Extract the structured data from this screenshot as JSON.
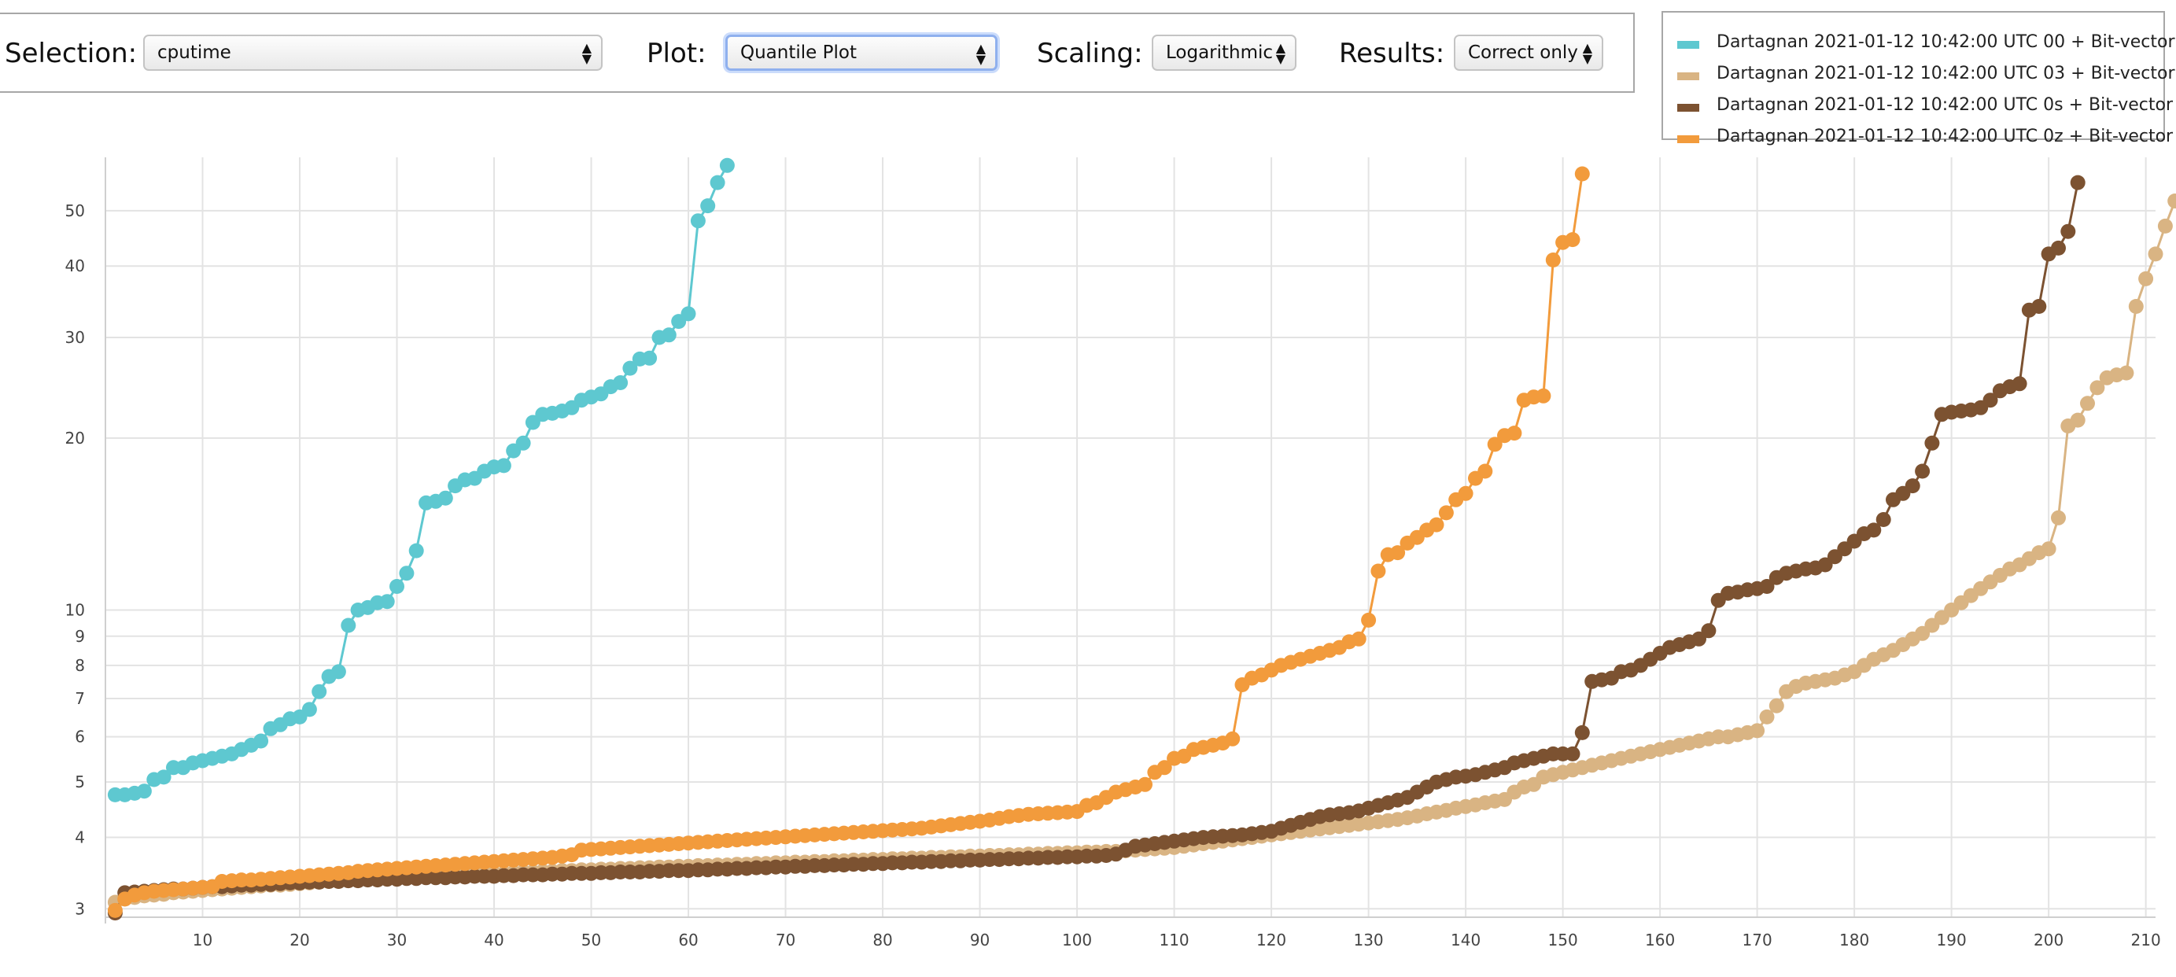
{
  "controls": {
    "selection_label": "Selection:",
    "selection_value": "cputime",
    "plot_label": "Plot:",
    "plot_value": "Quantile Plot",
    "scaling_label": "Scaling:",
    "scaling_value": "Logarithmic",
    "results_label": "Results:",
    "results_value": "Correct only"
  },
  "legend": [
    {
      "label": "Dartagnan 2021-01-12 10:42:00 UTC 00 + Bit-vector",
      "color": "#5ec8d0"
    },
    {
      "label": "Dartagnan 2021-01-12 10:42:00 UTC 03 + Bit-vector",
      "color": "#d9b483"
    },
    {
      "label": "Dartagnan 2021-01-12 10:42:00 UTC 0s + Bit-vector",
      "color": "#7c5231"
    },
    {
      "label": "Dartagnan 2021-01-12 10:42:00 UTC 0z + Bit-vector",
      "color": "#f29b3c"
    }
  ],
  "chart_data": {
    "type": "line",
    "scale": "log",
    "xlim": [
      0,
      211
    ],
    "ylim": [
      2.9,
      62
    ],
    "grid": true,
    "legend_position": "top-right",
    "x_ticks": [
      10,
      20,
      30,
      40,
      50,
      60,
      70,
      80,
      90,
      100,
      110,
      120,
      130,
      140,
      150,
      160,
      170,
      180,
      190,
      200,
      210
    ],
    "y_ticks": [
      3,
      4,
      5,
      6,
      7,
      8,
      9,
      10,
      20,
      30,
      40,
      50
    ],
    "series": [
      {
        "name": "Dartagnan 2021-01-12 10:42:00 UTC 00 + Bit-vector",
        "color": "#5ec8d0",
        "values": [
          4.75,
          4.75,
          4.78,
          4.82,
          5.05,
          5.1,
          5.3,
          5.3,
          5.4,
          5.45,
          5.5,
          5.55,
          5.6,
          5.7,
          5.8,
          5.9,
          6.2,
          6.3,
          6.45,
          6.5,
          6.7,
          7.2,
          7.65,
          7.8,
          9.4,
          10.0,
          10.1,
          10.3,
          10.35,
          11.0,
          11.6,
          12.7,
          15.4,
          15.5,
          15.7,
          16.5,
          16.9,
          17.0,
          17.5,
          17.8,
          17.9,
          19.0,
          19.6,
          21.3,
          22.0,
          22.1,
          22.3,
          22.6,
          23.3,
          23.6,
          23.9,
          24.6,
          25.0,
          26.5,
          27.5,
          27.6,
          30.0,
          30.3,
          32.0,
          33.0,
          48.0,
          51.0,
          56.0,
          60.0
        ]
      },
      {
        "name": "Dartagnan 2021-01-12 10:42:00 UTC 03 + Bit-vector",
        "color": "#d9b483",
        "values": [
          3.08,
          3.12,
          3.14,
          3.16,
          3.17,
          3.18,
          3.2,
          3.21,
          3.22,
          3.23,
          3.24,
          3.25,
          3.26,
          3.27,
          3.28,
          3.29,
          3.3,
          3.3,
          3.31,
          3.32,
          3.33,
          3.34,
          3.35,
          3.35,
          3.36,
          3.37,
          3.38,
          3.38,
          3.39,
          3.4,
          3.4,
          3.41,
          3.42,
          3.42,
          3.43,
          3.44,
          3.44,
          3.45,
          3.45,
          3.46,
          3.46,
          3.47,
          3.48,
          3.48,
          3.49,
          3.49,
          3.5,
          3.5,
          3.51,
          3.51,
          3.52,
          3.52,
          3.53,
          3.53,
          3.54,
          3.54,
          3.55,
          3.55,
          3.56,
          3.56,
          3.57,
          3.57,
          3.58,
          3.58,
          3.59,
          3.59,
          3.6,
          3.6,
          3.61,
          3.61,
          3.62,
          3.62,
          3.63,
          3.63,
          3.64,
          3.64,
          3.65,
          3.65,
          3.66,
          3.66,
          3.67,
          3.67,
          3.68,
          3.68,
          3.69,
          3.69,
          3.7,
          3.7,
          3.71,
          3.71,
          3.72,
          3.72,
          3.73,
          3.73,
          3.74,
          3.74,
          3.75,
          3.75,
          3.76,
          3.76,
          3.77,
          3.77,
          3.78,
          3.78,
          3.79,
          3.8,
          3.81,
          3.82,
          3.83,
          3.84,
          3.86,
          3.88,
          3.9,
          3.92,
          3.94,
          3.96,
          3.98,
          4.0,
          4.02,
          4.04,
          4.06,
          4.08,
          4.1,
          4.12,
          4.14,
          4.16,
          4.18,
          4.2,
          4.22,
          4.24,
          4.26,
          4.28,
          4.3,
          4.33,
          4.36,
          4.4,
          4.43,
          4.46,
          4.5,
          4.53,
          4.56,
          4.6,
          4.63,
          4.66,
          4.8,
          4.9,
          4.95,
          5.1,
          5.15,
          5.2,
          5.25,
          5.3,
          5.35,
          5.4,
          5.45,
          5.5,
          5.55,
          5.6,
          5.65,
          5.7,
          5.75,
          5.8,
          5.85,
          5.9,
          5.95,
          6.0,
          6.0,
          6.05,
          6.1,
          6.15,
          6.5,
          6.8,
          7.2,
          7.35,
          7.45,
          7.5,
          7.55,
          7.6,
          7.7,
          7.8,
          8.0,
          8.2,
          8.35,
          8.5,
          8.7,
          8.9,
          9.1,
          9.4,
          9.7,
          10.0,
          10.3,
          10.6,
          10.9,
          11.2,
          11.5,
          11.8,
          12.0,
          12.3,
          12.6,
          12.8,
          14.5,
          21.0,
          21.5,
          23.0,
          24.5,
          25.5,
          25.8,
          26.0,
          34.0,
          38.0,
          42.0,
          47.0,
          52.0
        ]
      },
      {
        "name": "Dartagnan 2021-01-12 10:42:00 UTC 0s + Bit-vector",
        "color": "#7c5231",
        "values": [
          2.95,
          3.2,
          3.21,
          3.22,
          3.23,
          3.24,
          3.25,
          3.25,
          3.26,
          3.27,
          3.28,
          3.28,
          3.29,
          3.3,
          3.3,
          3.31,
          3.31,
          3.32,
          3.33,
          3.33,
          3.34,
          3.34,
          3.35,
          3.35,
          3.36,
          3.36,
          3.37,
          3.37,
          3.38,
          3.38,
          3.39,
          3.39,
          3.4,
          3.4,
          3.4,
          3.41,
          3.41,
          3.42,
          3.42,
          3.42,
          3.43,
          3.43,
          3.44,
          3.44,
          3.44,
          3.45,
          3.45,
          3.46,
          3.46,
          3.46,
          3.47,
          3.47,
          3.48,
          3.48,
          3.48,
          3.49,
          3.49,
          3.5,
          3.5,
          3.5,
          3.51,
          3.51,
          3.52,
          3.52,
          3.53,
          3.53,
          3.54,
          3.54,
          3.55,
          3.55,
          3.56,
          3.56,
          3.57,
          3.57,
          3.58,
          3.58,
          3.59,
          3.59,
          3.6,
          3.6,
          3.61,
          3.61,
          3.62,
          3.62,
          3.63,
          3.63,
          3.64,
          3.64,
          3.65,
          3.65,
          3.66,
          3.66,
          3.67,
          3.67,
          3.68,
          3.68,
          3.69,
          3.69,
          3.7,
          3.7,
          3.71,
          3.71,
          3.72,
          3.74,
          3.8,
          3.86,
          3.88,
          3.9,
          3.92,
          3.94,
          3.96,
          3.98,
          4.0,
          4.01,
          4.02,
          4.03,
          4.04,
          4.06,
          4.08,
          4.1,
          4.15,
          4.2,
          4.25,
          4.3,
          4.35,
          4.38,
          4.4,
          4.42,
          4.45,
          4.5,
          4.55,
          4.6,
          4.65,
          4.7,
          4.8,
          4.9,
          5.0,
          5.05,
          5.1,
          5.12,
          5.15,
          5.2,
          5.25,
          5.3,
          5.4,
          5.45,
          5.5,
          5.55,
          5.6,
          5.6,
          5.6,
          6.1,
          7.5,
          7.55,
          7.6,
          7.8,
          7.85,
          8.0,
          8.2,
          8.4,
          8.6,
          8.7,
          8.8,
          8.9,
          9.2,
          10.4,
          10.7,
          10.75,
          10.85,
          10.9,
          11.0,
          11.4,
          11.6,
          11.7,
          11.8,
          11.85,
          12.0,
          12.4,
          12.8,
          13.2,
          13.6,
          13.8,
          14.4,
          15.6,
          16.0,
          16.5,
          17.5,
          19.6,
          22.0,
          22.2,
          22.3,
          22.4,
          22.6,
          23.3,
          24.2,
          24.6,
          24.9,
          33.5,
          34.0,
          42.0,
          43.0,
          46.0,
          56.0
        ]
      },
      {
        "name": "Dartagnan 2021-01-12 10:42:00 UTC 0z + Bit-vector",
        "color": "#f29b3c",
        "values": [
          2.98,
          3.12,
          3.17,
          3.2,
          3.22,
          3.23,
          3.24,
          3.25,
          3.26,
          3.27,
          3.28,
          3.35,
          3.36,
          3.37,
          3.37,
          3.38,
          3.39,
          3.4,
          3.41,
          3.42,
          3.43,
          3.44,
          3.45,
          3.46,
          3.47,
          3.49,
          3.5,
          3.51,
          3.52,
          3.53,
          3.54,
          3.55,
          3.56,
          3.57,
          3.58,
          3.59,
          3.6,
          3.61,
          3.62,
          3.63,
          3.64,
          3.65,
          3.66,
          3.67,
          3.68,
          3.69,
          3.71,
          3.73,
          3.8,
          3.81,
          3.82,
          3.83,
          3.84,
          3.85,
          3.86,
          3.87,
          3.88,
          3.89,
          3.9,
          3.91,
          3.92,
          3.93,
          3.94,
          3.95,
          3.96,
          3.97,
          3.98,
          3.99,
          4.0,
          4.01,
          4.02,
          4.03,
          4.04,
          4.05,
          4.06,
          4.07,
          4.08,
          4.09,
          4.1,
          4.11,
          4.12,
          4.13,
          4.14,
          4.15,
          4.17,
          4.19,
          4.21,
          4.23,
          4.25,
          4.27,
          4.29,
          4.32,
          4.35,
          4.37,
          4.39,
          4.4,
          4.41,
          4.42,
          4.43,
          4.44,
          4.55,
          4.6,
          4.7,
          4.8,
          4.85,
          4.9,
          4.95,
          5.2,
          5.3,
          5.5,
          5.55,
          5.7,
          5.75,
          5.8,
          5.85,
          5.95,
          7.4,
          7.6,
          7.7,
          7.85,
          8.0,
          8.1,
          8.2,
          8.3,
          8.4,
          8.5,
          8.6,
          8.8,
          8.9,
          9.6,
          11.7,
          12.5,
          12.6,
          13.1,
          13.4,
          13.8,
          14.1,
          14.8,
          15.6,
          16.0,
          17.0,
          17.5,
          19.5,
          20.2,
          20.4,
          23.3,
          23.6,
          23.7,
          41.0,
          44.0,
          44.5,
          58.0
        ]
      }
    ]
  }
}
